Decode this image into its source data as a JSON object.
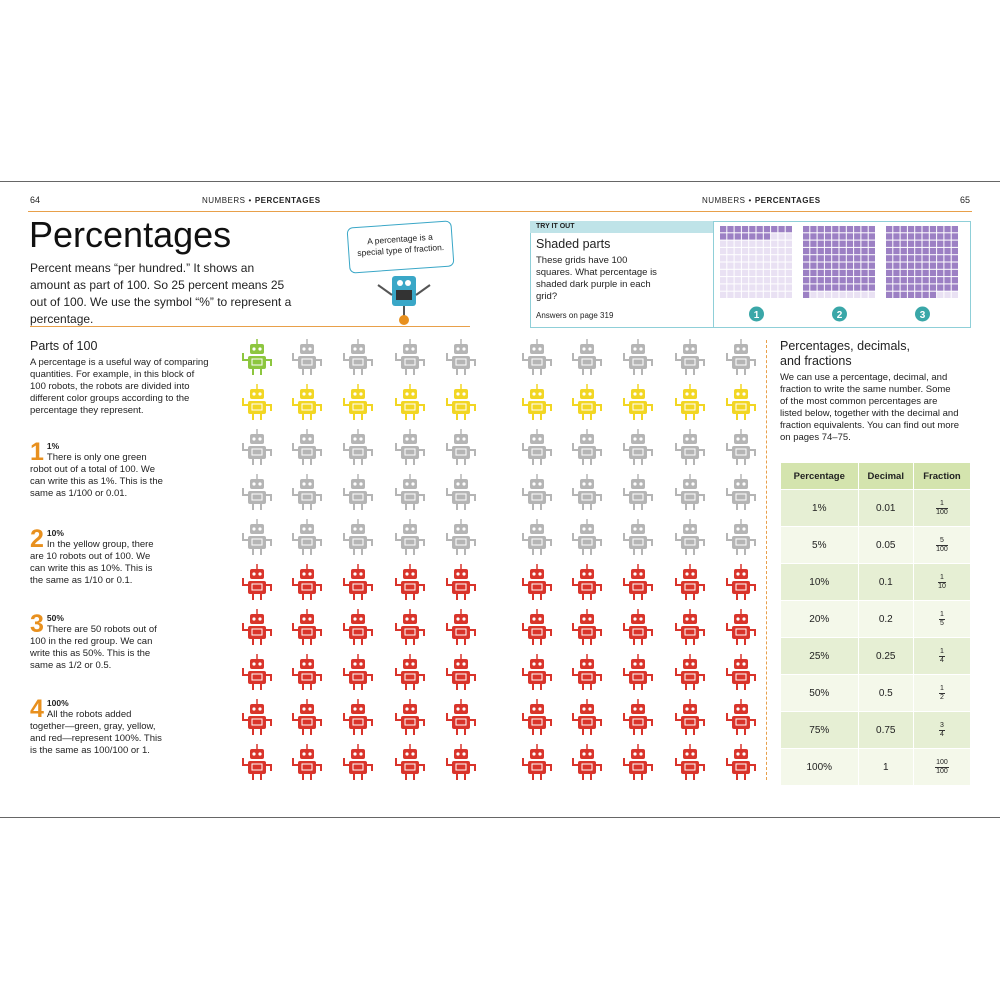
{
  "header": {
    "left_page": "64",
    "right_page": "65",
    "section": "NUMBERS",
    "separator": "•",
    "topic": "PERCENTAGES"
  },
  "title": "Percentages",
  "intro": "Percent means “per hundred.” It shows an amount as part of 100. So 25 percent means 25 out of 100. We use the symbol “%” to represent a percentage.",
  "bubble": "A percentage is a special type of fraction.",
  "try_it_out": {
    "label": "TRY IT OUT",
    "title": "Shaded parts",
    "text": "These grids have 100 squares. What percentage is shaded dark purple in each grid?",
    "answers": "Answers on page 319",
    "grids": [
      {
        "number": "1",
        "shaded": 17
      },
      {
        "number": "2",
        "shaded": 91
      },
      {
        "number": "3",
        "shaded": 97
      }
    ]
  },
  "parts": {
    "title": "Parts of 100",
    "text": "A percentage is a useful way of comparing quantities. For example, in this block of 100 robots, the robots are divided into different color groups according to the percentage they represent.",
    "items": [
      {
        "number": "1",
        "heading": "1%",
        "text": "There is only one green robot out of a total of 100. We can write this as 1%. This is the same as 1/100 or 0.01."
      },
      {
        "number": "2",
        "heading": "10%",
        "text": "In the yellow group, there are 10 robots out of 100. We can write this as 10%. This is the same as 1/10 or 0.1."
      },
      {
        "number": "3",
        "heading": "50%",
        "text": "There are 50 robots out of 100 in the red group. We can write this as 50%. This is the same as 1/2 or 0.5."
      },
      {
        "number": "4",
        "heading": "100%",
        "text": "All the robots added together—green, gray, yellow, and red—represent 100%. This is the same as 100/100 or 1."
      }
    ]
  },
  "robots": {
    "groups": [
      {
        "name": "green",
        "color": "#8dc63f",
        "count": 1
      },
      {
        "name": "yellow",
        "color": "#f2d624",
        "count": 10
      },
      {
        "name": "gray",
        "color": "#b5b5b5",
        "count": 39
      },
      {
        "name": "red",
        "color": "#d9342b",
        "count": 50
      }
    ]
  },
  "side": {
    "title": "Percentages, decimals, and fractions",
    "text": "We can use a percentage, decimal, and fraction to write the same number. Some of the most common percentages are listed below, together with the decimal and fraction equivalents. You can find out more on pages 74–75.",
    "table": {
      "columns": [
        "Percentage",
        "Decimal",
        "Fraction"
      ],
      "rows": [
        [
          "1%",
          "0.01",
          {
            "numerator": "1",
            "denominator": "100"
          }
        ],
        [
          "5%",
          "0.05",
          {
            "numerator": "5",
            "denominator": "100"
          }
        ],
        [
          "10%",
          "0.1",
          {
            "numerator": "1",
            "denominator": "10"
          }
        ],
        [
          "20%",
          "0.2",
          {
            "numerator": "1",
            "denominator": "5"
          }
        ],
        [
          "25%",
          "0.25",
          {
            "numerator": "1",
            "denominator": "4"
          }
        ],
        [
          "50%",
          "0.5",
          {
            "numerator": "1",
            "denominator": "2"
          }
        ],
        [
          "75%",
          "0.75",
          {
            "numerator": "3",
            "denominator": "4"
          }
        ],
        [
          "100%",
          "1",
          {
            "numerator": "100",
            "denominator": "100"
          }
        ]
      ]
    }
  }
}
